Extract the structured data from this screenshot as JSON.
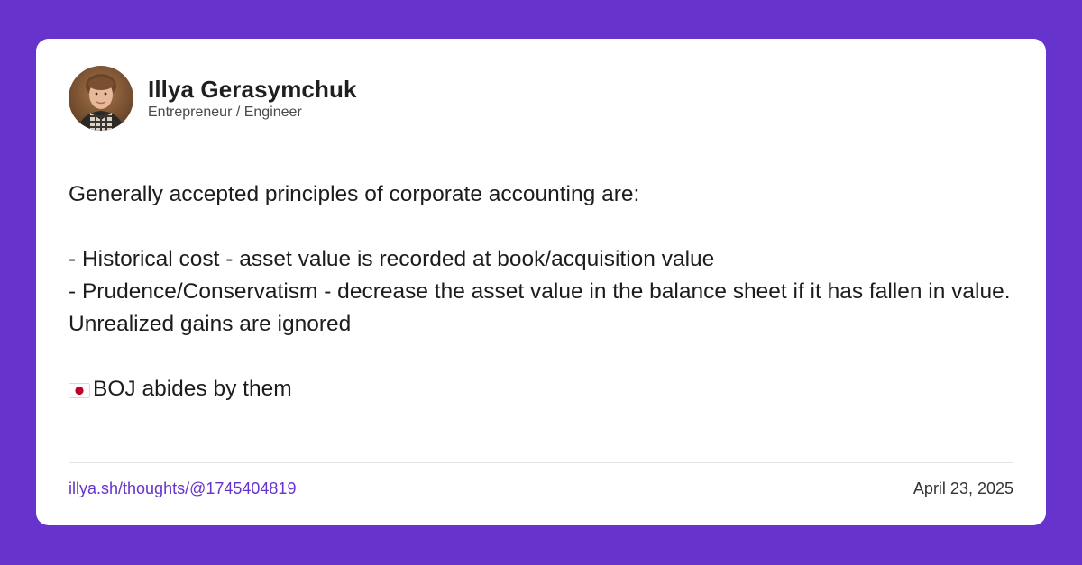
{
  "author": {
    "name": "Illya Gerasymchuk",
    "title": "Entrepreneur / Engineer"
  },
  "post": {
    "intro": "Generally accepted principles of corporate accounting are:",
    "bullet_1": "- Historical cost - asset value is recorded at book/acquisition value",
    "bullet_2": "- Prudence/Conservatism - decrease the asset value in the balance sheet if it has fallen in value. Unrealized gains are ignored",
    "closing": "BOJ abides by them",
    "closing_icon": "japan-flag-icon"
  },
  "footer": {
    "link": "illya.sh/thoughts/@1745404819",
    "date": "April 23, 2025"
  },
  "colors": {
    "background": "#6633cc",
    "card": "#ffffff",
    "link": "#6633cc"
  }
}
